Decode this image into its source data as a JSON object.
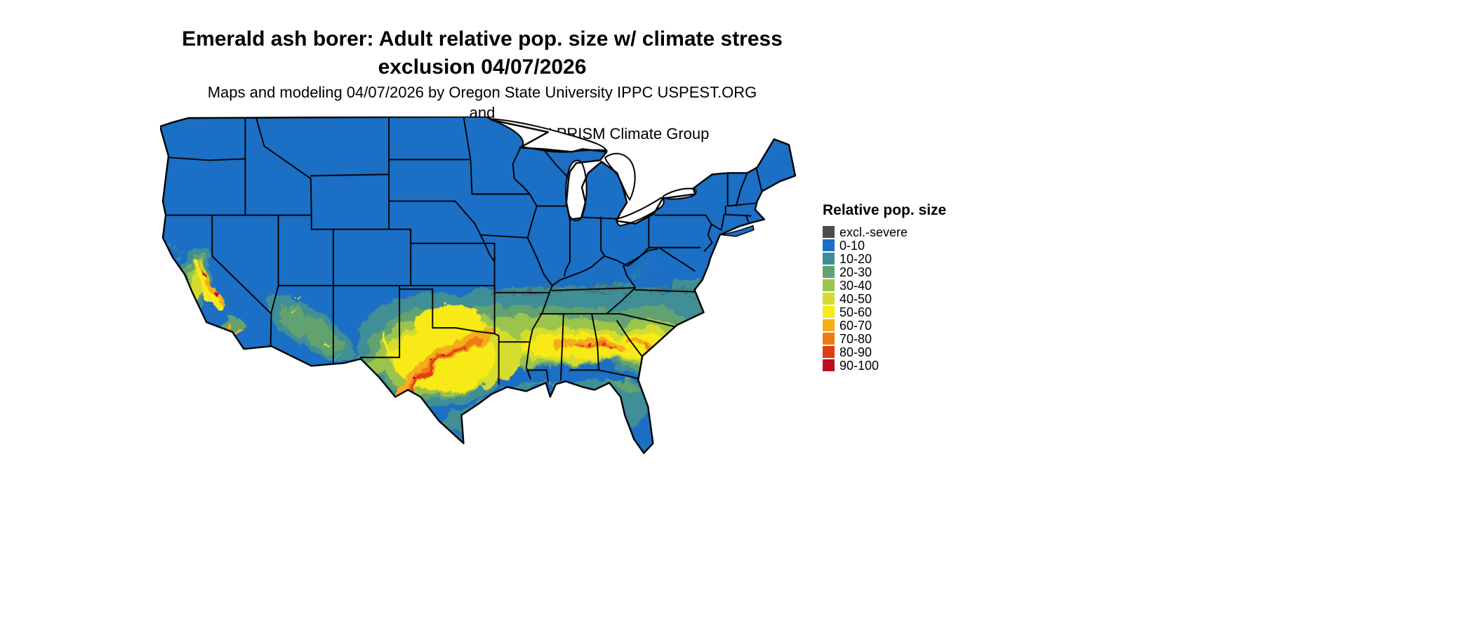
{
  "header": {
    "title_lines": [
      "Emerald ash borer: Adult relative pop. size w/ climate stress",
      "exclusion 04/07/2026"
    ],
    "subtitle_lines": [
      "Maps and modeling 04/07/2026 by Oregon State University IPPC USPEST.ORG and",
      "USDA-APHIS-PPQ; climate data from OSU PRISM Climate Group"
    ]
  },
  "legend": {
    "title": "Relative pop. size",
    "items": [
      {
        "label": "excl.-severe",
        "color": "#4d4d4d"
      },
      {
        "label": "0-10",
        "color": "#1b6fc4"
      },
      {
        "label": "10-20",
        "color": "#3f8e96"
      },
      {
        "label": "20-30",
        "color": "#62a271"
      },
      {
        "label": "30-40",
        "color": "#9bc44d"
      },
      {
        "label": "40-50",
        "color": "#d5dc2f"
      },
      {
        "label": "50-60",
        "color": "#f8ea15"
      },
      {
        "label": "60-70",
        "color": "#f5ad1a"
      },
      {
        "label": "70-80",
        "color": "#ee7a12"
      },
      {
        "label": "80-90",
        "color": "#e03c15"
      },
      {
        "label": "90-100",
        "color": "#c00c20"
      }
    ]
  },
  "map": {
    "region": "Continental United States",
    "land_base_bin": "0-10",
    "water_color": "#ffffff",
    "boundary_color": "#000000"
  }
}
